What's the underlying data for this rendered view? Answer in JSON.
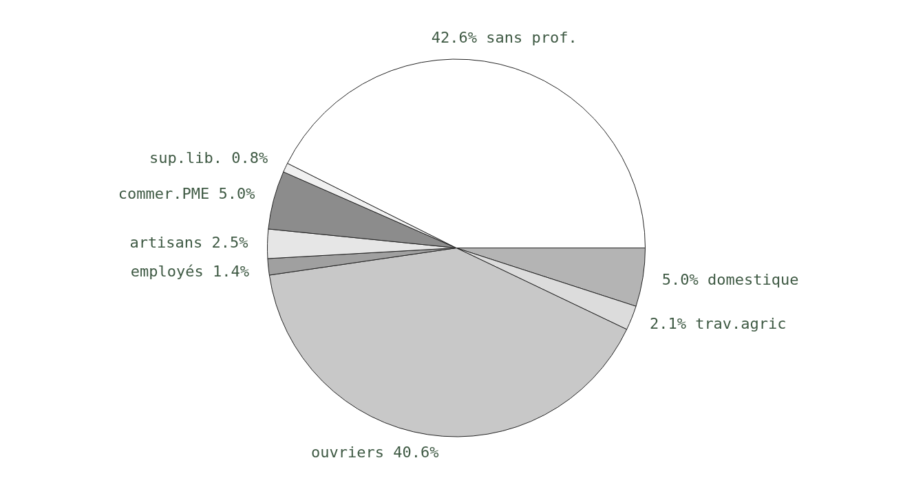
{
  "chart_data": {
    "type": "pie",
    "categories": [
      "domestique",
      "trav.agric",
      "ouvriers",
      "employés",
      "artisans",
      "commer.PME",
      "sup.lib.",
      "sans prof."
    ],
    "values": [
      5.0,
      2.1,
      40.6,
      1.4,
      2.5,
      5.0,
      0.8,
      42.6
    ],
    "value_labels": [
      "5.0%",
      "2.1%",
      "40.6%",
      "1.4%",
      "2.5%",
      "5.0%",
      "0.8%",
      "42.6%"
    ],
    "colors": [
      "#b4b4b4",
      "#dcdcdc",
      "#c8c8c8",
      "#a0a0a0",
      "#e6e6e6",
      "#8c8c8c",
      "#f0f0f0",
      "#ffffff"
    ],
    "legend": false
  }
}
